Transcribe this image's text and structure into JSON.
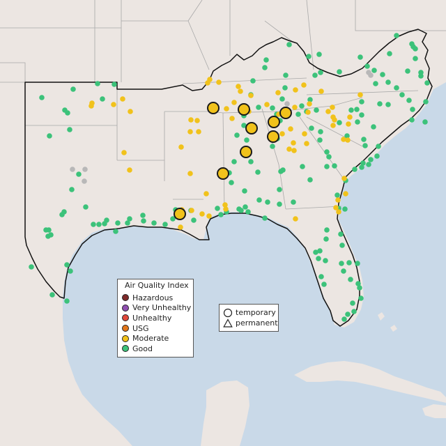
{
  "legend": {
    "title": "Air Quality Index",
    "categories": [
      {
        "label": "Hazardous",
        "color": "#7e2a2a"
      },
      {
        "label": "Very Unhealthy",
        "color": "#8f4fb0"
      },
      {
        "label": "Unhealthy",
        "color": "#e0483a"
      },
      {
        "label": "USG",
        "color": "#e2761b"
      },
      {
        "label": "Moderate",
        "color": "#f1c21b"
      },
      {
        "label": "Good",
        "color": "#3cc27a"
      }
    ]
  },
  "shape_legend": {
    "items": [
      {
        "label": "temporary",
        "shape": "circle-icon"
      },
      {
        "label": "permanent",
        "shape": "triangle-icon"
      }
    ]
  },
  "colors": {
    "water": "#c9d9e8",
    "land": "#ece6e2",
    "region_border": "#111111",
    "state_line": "#a8a8a8",
    "no_data": "#b8b8b8",
    "good": "#3cc27a",
    "moderate": "#f1c21b"
  }
}
